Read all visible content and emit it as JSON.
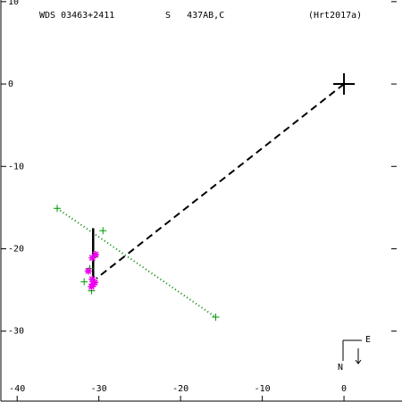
{
  "chart_data": {
    "type": "scatter",
    "title": "WDS 03463+2411",
    "subtitle": "S   437AB,C",
    "annotation": "(Hrt2017a)",
    "xlim": [
      -42.1,
      7.1
    ],
    "ylim": [
      -38.6,
      10.2
    ],
    "xticks": [
      -40,
      -30,
      -20,
      -10,
      0
    ],
    "yticks": [
      10,
      0,
      -10,
      -20,
      -30
    ],
    "compass": {
      "east": "E",
      "north": "N"
    },
    "lines": [
      {
        "color": "#008800",
        "style": "dotted",
        "x": [
          -35.1,
          -15.7
        ],
        "values": [
          -15.1,
          -28.3
        ]
      },
      {
        "color": "#000000",
        "style": "dashed",
        "x": [
          0,
          -30.3
        ],
        "values": [
          0,
          -23.6
        ]
      },
      {
        "color": "#000000",
        "style": "solid",
        "x": [
          -30.7,
          -30.7
        ],
        "values": [
          -17.5,
          -24.3
        ]
      }
    ],
    "series": [
      {
        "color": "#009900",
        "marker": "plus",
        "x": [
          -35.1,
          -29.5,
          -15.7,
          -31.8,
          -30.9,
          -31.1,
          -30.6
        ],
        "values": [
          -15.1,
          -17.8,
          -28.3,
          -24.0,
          -25.1,
          -22.4,
          -21.0
        ]
      },
      {
        "color": "#ee00ee",
        "marker": "asterisk",
        "x": [
          -30.4,
          -30.8,
          -31.3,
          -30.8,
          -30.7,
          -30.9,
          -30.5
        ],
        "values": [
          -20.7,
          -21.1,
          -22.7,
          -23.7,
          -24.3,
          -24.6,
          -24.1
        ]
      },
      {
        "color": "#000000",
        "marker": "big-plus",
        "x": [
          0
        ],
        "values": [
          0
        ]
      }
    ]
  }
}
